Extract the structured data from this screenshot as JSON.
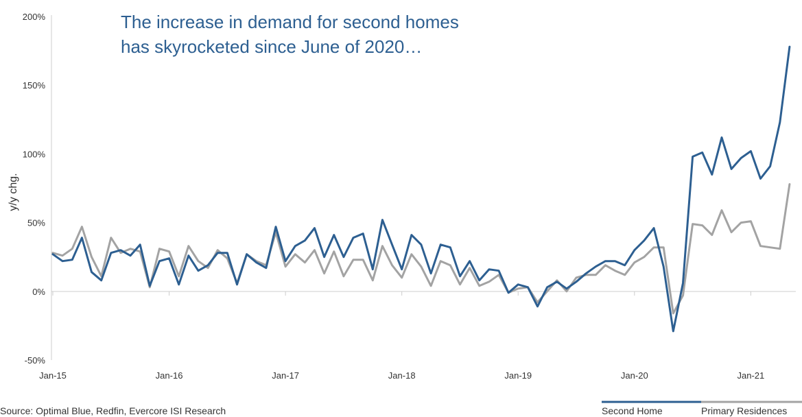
{
  "source_text": "Source: Optimal Blue, Redfin, Evercore ISI Research",
  "colors": {
    "second_home": "#2d5f91",
    "primary": "#a3a3a3",
    "title": "#2d5f91",
    "axis": "#cccccc"
  },
  "chart_data": {
    "type": "line",
    "title": [
      "The increase in demand for second homes",
      "has skyrocketed since June of 2020…"
    ],
    "ylabel": "y/y chg.",
    "xlabel": "",
    "ylim": [
      -50,
      200
    ],
    "yticks": [
      -50,
      0,
      50,
      100,
      150,
      200
    ],
    "ytick_labels": [
      "-50%",
      "0%",
      "50%",
      "100%",
      "150%",
      "200%"
    ],
    "x_start": "2015-01",
    "x_end": "2021-03",
    "xtick_labels": [
      "Jan-15",
      "Jan-16",
      "Jan-17",
      "Jan-18",
      "Jan-19",
      "Jan-20",
      "Jan-21"
    ],
    "legend_position": "bottom-right",
    "series": [
      {
        "name": "Second Home",
        "color": "#2d5f91",
        "values": [
          27,
          22,
          23,
          39,
          14,
          8,
          28,
          30,
          26,
          34,
          4,
          22,
          24,
          5,
          26,
          15,
          19,
          28,
          28,
          5,
          27,
          21,
          17,
          47,
          22,
          33,
          37,
          46,
          25,
          41,
          25,
          39,
          42,
          16,
          52,
          34,
          16,
          41,
          34,
          13,
          34,
          32,
          11,
          22,
          8,
          16,
          15,
          -1,
          5,
          3,
          -11,
          3,
          7,
          2,
          7,
          13,
          18,
          22,
          22,
          19,
          30,
          37,
          46,
          18,
          -29,
          6,
          98,
          101,
          85,
          112,
          89,
          97,
          102,
          82,
          91,
          123,
          178
        ],
        "note": ""
      },
      {
        "name": "Primary Residences",
        "color": "#a3a3a3",
        "values": [
          28,
          26,
          31,
          47,
          25,
          11,
          39,
          28,
          31,
          29,
          3,
          31,
          29,
          11,
          33,
          22,
          17,
          30,
          24,
          6,
          27,
          22,
          19,
          43,
          18,
          27,
          21,
          30,
          13,
          29,
          11,
          23,
          23,
          8,
          33,
          19,
          10,
          27,
          18,
          4,
          22,
          19,
          5,
          17,
          4,
          7,
          12,
          -1,
          2,
          3,
          -8,
          0,
          8,
          0,
          10,
          12,
          12,
          19,
          15,
          12,
          21,
          25,
          32,
          32,
          -16,
          -3,
          49,
          48,
          41,
          59,
          43,
          50,
          51,
          33,
          32,
          31,
          78
        ]
      }
    ]
  }
}
